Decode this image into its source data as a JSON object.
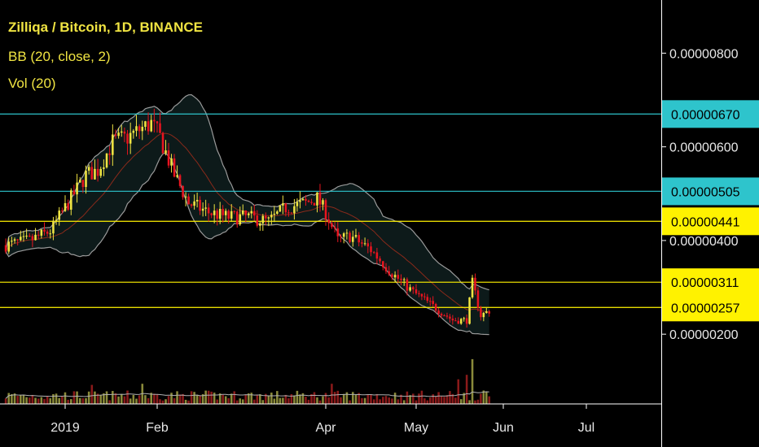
{
  "legend": {
    "title": "Zilliqa / Bitcoin, 1D, BINANCE",
    "bb": "BB (20, close, 2)",
    "vol": "Vol (20)"
  },
  "chart_data": {
    "type": "candlestick",
    "symbol": "Zilliqa / Bitcoin",
    "timeframe": "1D",
    "exchange": "BINANCE",
    "indicators": [
      "BB (20, close, 2)",
      "Vol (20)"
    ],
    "y_ticks": [
      "0.00000800",
      "0.00000600",
      "0.00000400",
      "0.00000200"
    ],
    "x_ticks": [
      "2019",
      "Feb",
      "Apr",
      "May",
      "Jun",
      "Jul"
    ],
    "x_tick_dates": [
      "2019-01-01",
      "2019-02-01",
      "2019-04-01",
      "2019-05-01",
      "2019-06-01",
      "2019-07-01"
    ],
    "ylim": [
      1.5e-06,
      9.1e-06
    ],
    "price_levels": [
      {
        "label": "0.00000670",
        "value": 6.7e-06,
        "color": "#2ec4cc",
        "text_color": "#000000"
      },
      {
        "label": "0.00000505",
        "value": 5.05e-06,
        "color": "#2ec4cc",
        "text_color": "#000000"
      },
      {
        "label": "0.00000441",
        "value": 4.41e-06,
        "color": "#fff200",
        "text_color": "#000000"
      },
      {
        "label": "0.00000311",
        "value": 3.11e-06,
        "color": "#fff200",
        "text_color": "#000000"
      },
      {
        "label": "0.00000257",
        "value": 2.57e-06,
        "color": "#fff200",
        "text_color": "#000000"
      }
    ],
    "price_path": {
      "dates": [
        "2018-12-12",
        "2018-12-20",
        "2018-12-27",
        "2019-01-03",
        "2019-01-08",
        "2019-01-12",
        "2019-01-17",
        "2019-01-22",
        "2019-01-27",
        "2019-01-30",
        "2019-02-02",
        "2019-02-07",
        "2019-02-12",
        "2019-02-19",
        "2019-02-26",
        "2019-03-05",
        "2019-03-12",
        "2019-03-18",
        "2019-03-25",
        "2019-03-29",
        "2019-04-01",
        "2019-04-05",
        "2019-04-09",
        "2019-04-16",
        "2019-04-23",
        "2019-04-30",
        "2019-05-07",
        "2019-05-14",
        "2019-05-19",
        "2019-05-21",
        "2019-05-24",
        "2019-05-27"
      ],
      "closes": [
        3.9e-06,
        4e-06,
        4.2e-06,
        4.9e-06,
        5.4e-06,
        5.5e-06,
        6.1e-06,
        6.2e-06,
        6.4e-06,
        6.5e-06,
        6.2e-06,
        5.4e-06,
        4.8e-06,
        4.6e-06,
        4.5e-06,
        4.5e-06,
        4.4e-06,
        4.7e-06,
        4.8e-06,
        4.9e-06,
        4.6e-06,
        4e-06,
        4.1e-06,
        3.8e-06,
        3.3e-06,
        2.9e-06,
        2.6e-06,
        2.3e-06,
        2.3e-06,
        3.1e-06,
        2.4e-06,
        2.5e-06
      ]
    },
    "colors": {
      "up": "#f0e442",
      "down": "#e8141f",
      "bb_band": "#9a9a9a",
      "bb_basis": "#8a2a1a",
      "bb_fill": "#0d1a1a",
      "axis_text": "#e8e8e8",
      "divider": "#ffffff"
    }
  }
}
